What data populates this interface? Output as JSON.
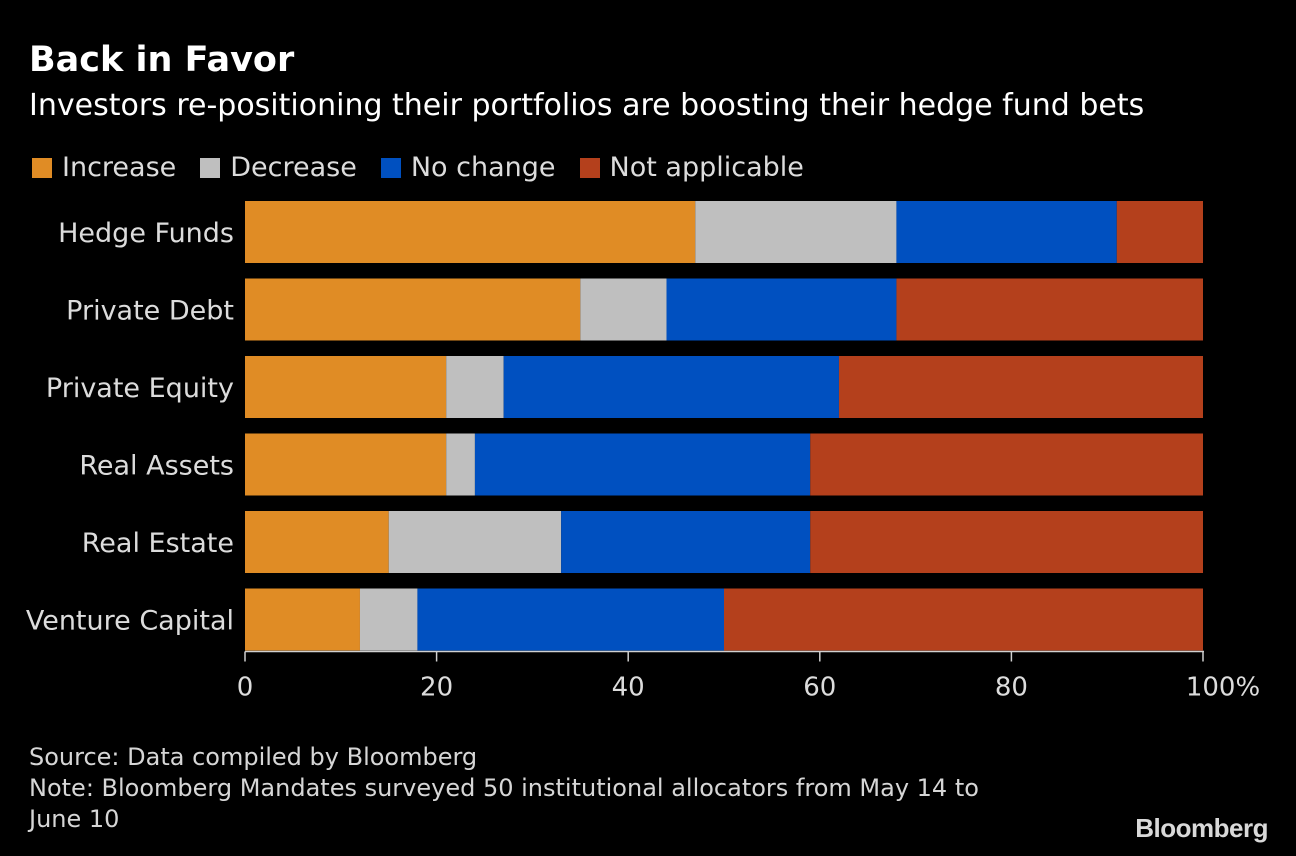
{
  "header": {
    "title": "Back in Favor",
    "subtitle": "Investors re-positioning their portfolios are boosting their hedge fund bets"
  },
  "colors": {
    "background": "#000000",
    "Increase": "#e08c25",
    "Decrease": "#bfbfbf",
    "No change": "#0050c0",
    "Not applicable": "#b4401c"
  },
  "chart_data": {
    "type": "bar",
    "orientation": "horizontal",
    "stacked": true,
    "categories": [
      "Hedge Funds",
      "Private Debt",
      "Private Equity",
      "Real Assets",
      "Real Estate",
      "Venture Capital"
    ],
    "series": [
      {
        "name": "Increase",
        "values": [
          47,
          35,
          21,
          21,
          15,
          12
        ]
      },
      {
        "name": "Decrease",
        "values": [
          21,
          9,
          6,
          3,
          18,
          6
        ]
      },
      {
        "name": "No change",
        "values": [
          23,
          24,
          35,
          35,
          26,
          32
        ]
      },
      {
        "name": "Not applicable",
        "values": [
          9,
          32,
          38,
          41,
          41,
          50
        ]
      }
    ],
    "xlim": [
      0,
      100
    ],
    "xticks": [
      "0",
      "20",
      "40",
      "60",
      "80",
      "100%"
    ],
    "grid": false,
    "legend_position": "top"
  },
  "footer": {
    "source": "Source: Data compiled by Bloomberg",
    "note_line1": "Note: Bloomberg Mandates surveyed 50 institutional allocators from May 14 to",
    "note_line2": "June 10",
    "brand": "Bloomberg"
  }
}
